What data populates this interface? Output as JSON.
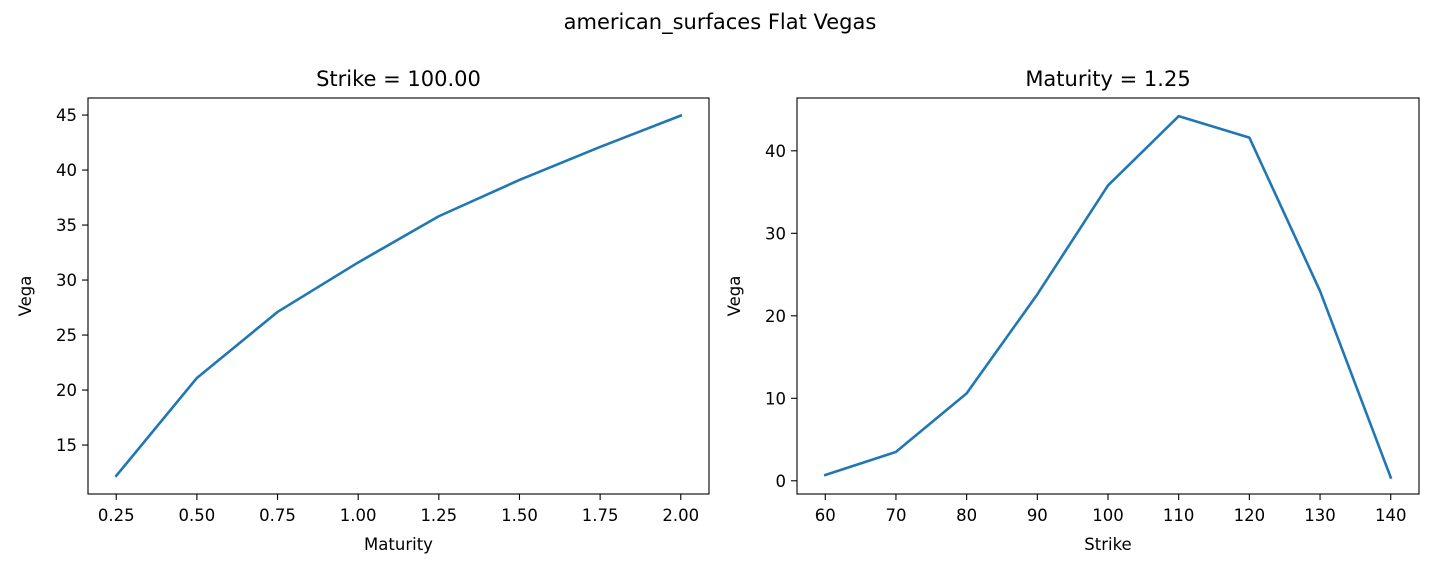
{
  "figure": {
    "suptitle": "american_surfaces Flat Vegas"
  },
  "chart_data": [
    {
      "type": "line",
      "title": "Strike = 100.00",
      "xlabel": "Maturity",
      "ylabel": "Vega",
      "xlim": [
        0.1625,
        2.0875
      ],
      "ylim": [
        10.55,
        46.55
      ],
      "xticks": [
        0.25,
        0.5,
        0.75,
        1.0,
        1.25,
        1.5,
        1.75,
        2.0
      ],
      "xtick_labels": [
        "0.25",
        "0.50",
        "0.75",
        "1.00",
        "1.25",
        "1.50",
        "1.75",
        "2.00"
      ],
      "yticks": [
        15,
        20,
        25,
        30,
        35,
        40,
        45
      ],
      "ytick_labels": [
        "15",
        "20",
        "25",
        "30",
        "35",
        "40",
        "45"
      ],
      "grid": false,
      "color": "#1f77b4",
      "series": [
        {
          "x": [
            0.25,
            0.5,
            0.75,
            1.0,
            1.25,
            1.5,
            1.75,
            2.0
          ],
          "y": [
            12.2,
            21.1,
            27.1,
            31.6,
            35.8,
            39.1,
            42.1,
            44.95
          ]
        }
      ]
    },
    {
      "type": "line",
      "title": "Maturity = 1.25",
      "xlabel": "Strike",
      "ylabel": "Vega",
      "xlim": [
        56,
        144
      ],
      "ylim": [
        -1.6,
        46.4
      ],
      "xticks": [
        60,
        70,
        80,
        90,
        100,
        110,
        120,
        130,
        140
      ],
      "xtick_labels": [
        "60",
        "70",
        "80",
        "90",
        "100",
        "110",
        "120",
        "130",
        "140"
      ],
      "yticks": [
        0,
        10,
        20,
        30,
        40
      ],
      "ytick_labels": [
        "0",
        "10",
        "20",
        "30",
        "40"
      ],
      "grid": false,
      "color": "#1f77b4",
      "series": [
        {
          "x": [
            60,
            70,
            80,
            90,
            100,
            110,
            120,
            130,
            140
          ],
          "y": [
            0.7,
            3.5,
            10.6,
            22.6,
            35.8,
            44.2,
            41.6,
            23.0,
            0.4
          ]
        }
      ]
    }
  ]
}
